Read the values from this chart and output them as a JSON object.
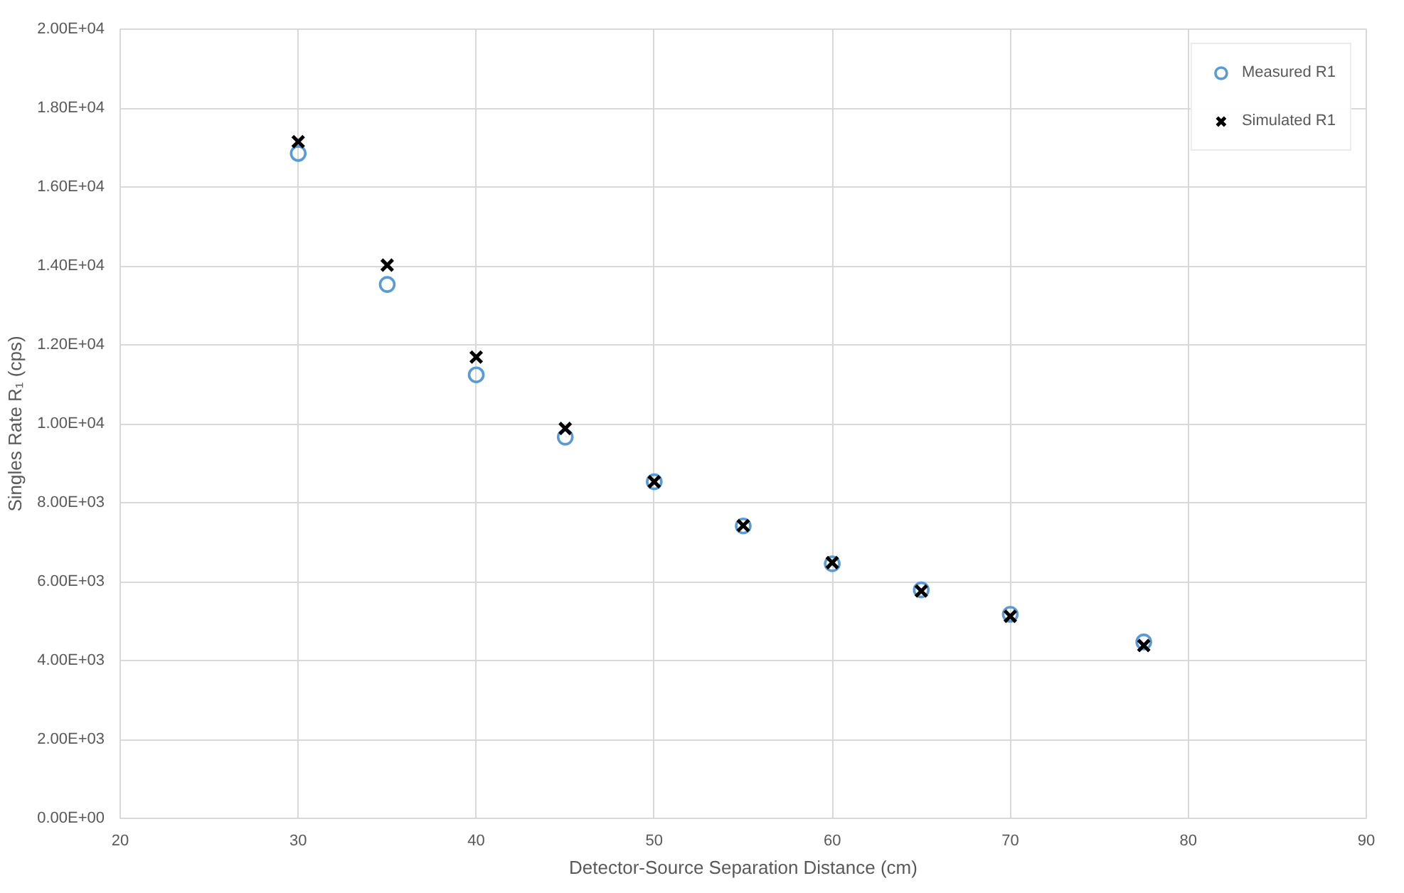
{
  "chart_data": {
    "type": "scatter",
    "xlabel": "Detector-Source Separation Distance (cm)",
    "ylabel": "Singles Rate R₁ (cps)",
    "x": [
      30,
      35,
      40,
      45,
      50,
      55,
      60,
      65,
      70,
      77.5
    ],
    "series": [
      {
        "name": "Measured R1",
        "color": "#5b9bd5",
        "marker": "circle",
        "values": [
          16850,
          13530,
          11240,
          9660,
          8530,
          7410,
          6450,
          5790,
          5170,
          4470
        ]
      },
      {
        "name": "Simulated R1",
        "color": "#000000",
        "marker": "cross",
        "values": [
          17150,
          14020,
          11690,
          9880,
          8530,
          7420,
          6480,
          5760,
          5120,
          4380
        ]
      }
    ],
    "xlim": [
      20,
      90
    ],
    "xticks": [
      20,
      30,
      40,
      50,
      60,
      70,
      80,
      90
    ],
    "ylim": [
      0,
      20000
    ],
    "yticks": [
      {
        "value": 0,
        "label": "0.00E+00"
      },
      {
        "value": 2000,
        "label": "2.00E+03"
      },
      {
        "value": 4000,
        "label": "4.00E+03"
      },
      {
        "value": 6000,
        "label": "6.00E+03"
      },
      {
        "value": 8000,
        "label": "8.00E+03"
      },
      {
        "value": 10000,
        "label": "1.00E+04"
      },
      {
        "value": 12000,
        "label": "1.20E+04"
      },
      {
        "value": 14000,
        "label": "1.40E+04"
      },
      {
        "value": 16000,
        "label": "1.60E+04"
      },
      {
        "value": 18000,
        "label": "1.80E+04"
      },
      {
        "value": 20000,
        "label": "2.00E+04"
      }
    ],
    "grid": true,
    "legend": "top right"
  }
}
